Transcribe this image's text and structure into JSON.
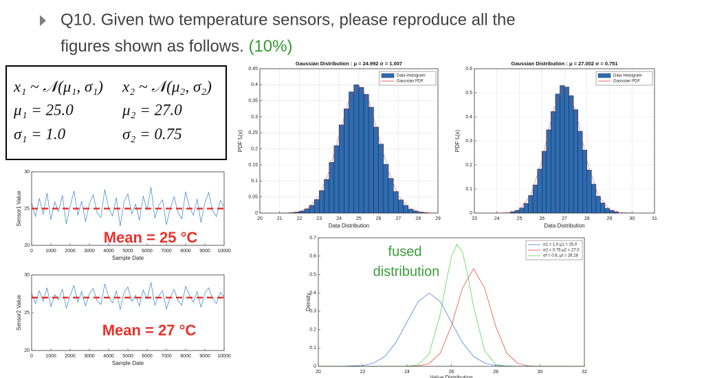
{
  "slide": {
    "title_line1": "Q10. Given two temperature sensors, please reproduce all the",
    "title_line2": "figures shown as follows.",
    "title_weight": "(10%)",
    "formulas": [
      [
        "x₁ ~ 𝒩(μ₁, σ₁)",
        "x₂ ~ 𝒩(μ₂, σ₂)"
      ],
      [
        "μ₁ = 25.0",
        "μ₂ = 27.0"
      ],
      [
        "σ₁ = 1.0",
        "σ₂ = 0.75"
      ]
    ]
  },
  "chart_data": [
    {
      "type": "line",
      "xlabel": "Sample Date",
      "ylabel": "Sensor1 Value",
      "x": [
        0,
        200,
        400,
        600,
        800,
        1000,
        1200,
        1400,
        1600,
        1800,
        2000,
        2200,
        2400,
        2600,
        2800,
        3000,
        3200,
        3400,
        3600,
        3800,
        4000,
        4200,
        4400,
        4600,
        4800,
        5000,
        5200,
        5400,
        5600,
        5800,
        6000,
        6200,
        6400,
        6600,
        6800,
        7000,
        7200,
        7400,
        7600,
        7800,
        8000,
        8200,
        8400,
        8600,
        8800,
        9000,
        9200,
        9400,
        9600,
        9800,
        10000
      ],
      "series": [
        {
          "color": "#2f7dc4",
          "values": [
            25.8,
            23.9,
            26.4,
            24.2,
            27.1,
            23.5,
            25.9,
            24.6,
            26.8,
            22.9,
            25.3,
            27.4,
            24.1,
            26.0,
            23.2,
            25.7,
            26.9,
            24.4,
            23.8,
            27.6,
            25.1,
            24.0,
            26.5,
            22.6,
            25.9,
            27.0,
            24.3,
            25.6,
            23.4,
            26.7,
            24.8,
            27.9,
            23.7,
            25.4,
            26.2,
            22.8,
            25.0,
            26.6,
            24.5,
            23.6,
            27.3,
            25.2,
            24.1,
            26.3,
            23.1,
            25.8,
            27.2,
            24.7,
            23.9,
            26.1,
            25.3
          ]
        }
      ],
      "mean": 25,
      "mean_color": "#e8312a",
      "annotation": "Mean = 25 °C",
      "xlim": [
        0,
        10000
      ],
      "xticks": [
        0,
        1000,
        2000,
        3000,
        4000,
        5000,
        6000,
        7000,
        8000,
        9000,
        10000
      ],
      "ylim": [
        20,
        30
      ],
      "yticks": [
        20,
        25,
        30
      ]
    },
    {
      "type": "line",
      "xlabel": "Sample Date",
      "ylabel": "Sensor2 Value",
      "x": [
        0,
        200,
        400,
        600,
        800,
        1000,
        1200,
        1400,
        1600,
        1800,
        2000,
        2200,
        2400,
        2600,
        2800,
        3000,
        3200,
        3400,
        3600,
        3800,
        4000,
        4200,
        4400,
        4600,
        4800,
        5000,
        5200,
        5400,
        5600,
        5800,
        6000,
        6200,
        6400,
        6600,
        6800,
        7000,
        7200,
        7400,
        7600,
        7800,
        8000,
        8200,
        8400,
        8600,
        8800,
        9000,
        9200,
        9400,
        9600,
        9800,
        10000
      ],
      "series": [
        {
          "color": "#2f7dc4",
          "values": [
            27.6,
            26.2,
            27.9,
            26.5,
            28.3,
            25.8,
            27.4,
            26.7,
            28.1,
            25.6,
            27.2,
            28.6,
            26.4,
            27.8,
            25.9,
            27.5,
            28.2,
            26.6,
            26.1,
            28.8,
            27.1,
            26.3,
            27.9,
            25.4,
            27.7,
            28.4,
            26.5,
            27.3,
            25.9,
            28.0,
            26.8,
            29.0,
            26.0,
            27.2,
            27.9,
            25.5,
            27.0,
            28.1,
            26.6,
            26.0,
            28.5,
            27.3,
            26.4,
            27.8,
            25.7,
            27.6,
            28.3,
            26.9,
            26.2,
            27.7,
            27.1
          ]
        }
      ],
      "mean": 27,
      "mean_color": "#e8312a",
      "annotation": "Mean = 27 °C",
      "xlim": [
        0,
        10000
      ],
      "xticks": [
        0,
        1000,
        2000,
        3000,
        4000,
        5000,
        6000,
        7000,
        8000,
        9000,
        10000
      ],
      "ylim": [
        20,
        30
      ],
      "yticks": [
        20,
        25,
        30
      ]
    },
    {
      "type": "histogram",
      "title": "Gaussian Distribution : μ = 24.992   σ = 1.007",
      "xlabel": "Data Distribution",
      "ylabel": "PDF fₓ(x)",
      "grid": true,
      "legend": "upper right",
      "series": [
        {
          "name": "Data Histogram",
          "color": "#2e6bb0",
          "bins": [
            21.5,
            21.75,
            22,
            22.25,
            22.5,
            22.75,
            23,
            23.25,
            23.5,
            23.75,
            24,
            24.25,
            24.5,
            24.75,
            25,
            25.25,
            25.5,
            25.75,
            26,
            26.25,
            26.5,
            26.75,
            27,
            27.25,
            27.5,
            27.75,
            28,
            28.25,
            28.5
          ],
          "values": [
            0.0013,
            0.003,
            0.0064,
            0.013,
            0.024,
            0.042,
            0.07,
            0.105,
            0.158,
            0.21,
            0.275,
            0.325,
            0.378,
            0.4,
            0.392,
            0.37,
            0.33,
            0.268,
            0.215,
            0.152,
            0.108,
            0.067,
            0.041,
            0.024,
            0.012,
            0.0065,
            0.003,
            0.0013
          ]
        },
        {
          "name": "Gaussian PDF",
          "color": "#e8312a",
          "x": [
            21,
            21.5,
            22,
            22.5,
            23,
            23.5,
            24,
            24.5,
            25,
            25.5,
            26,
            26.5,
            27,
            27.5,
            28,
            28.5,
            29
          ],
          "values": [
            0.0001,
            0.0009,
            0.0044,
            0.0175,
            0.054,
            0.1295,
            0.242,
            0.352,
            0.399,
            0.352,
            0.242,
            0.1295,
            0.054,
            0.0175,
            0.0044,
            0.0009,
            0.0001
          ]
        }
      ],
      "xlim": [
        20,
        29
      ],
      "xticks": [
        20,
        21,
        22,
        23,
        24,
        25,
        26,
        27,
        28,
        29
      ],
      "ylim": [
        0,
        0.45
      ],
      "yticks": [
        0,
        0.05,
        0.1,
        0.15,
        0.2,
        0.25,
        0.3,
        0.35,
        0.4,
        0.45
      ]
    },
    {
      "type": "histogram",
      "title": "Gaussian Distribution : μ = 27.002   σ = 0.751",
      "xlabel": "Data Distribution",
      "ylabel": "PDF fₓ(x)",
      "grid": true,
      "legend": "upper right",
      "series": [
        {
          "name": "Data Histogram",
          "color": "#2e6bb0",
          "bins": [
            24.6,
            24.8,
            25,
            25.2,
            25.4,
            25.6,
            25.8,
            26,
            26.2,
            26.4,
            26.6,
            26.8,
            27,
            27.2,
            27.4,
            27.6,
            27.8,
            28,
            28.2,
            28.4,
            28.6,
            28.8,
            29,
            29.2,
            29.4
          ],
          "values": [
            0.0048,
            0.011,
            0.021,
            0.04,
            0.073,
            0.117,
            0.183,
            0.257,
            0.346,
            0.422,
            0.495,
            0.53,
            0.524,
            0.488,
            0.43,
            0.34,
            0.262,
            0.179,
            0.12,
            0.07,
            0.042,
            0.02,
            0.011,
            0.005
          ]
        },
        {
          "name": "Gaussian PDF",
          "color": "#e8312a",
          "x": [
            24,
            24.5,
            25,
            25.5,
            26,
            26.5,
            27,
            27.5,
            28,
            28.5,
            29,
            29.5,
            30
          ],
          "values": [
            0.0002,
            0.0021,
            0.0152,
            0.072,
            0.219,
            0.426,
            0.532,
            0.426,
            0.219,
            0.072,
            0.0152,
            0.0021,
            0.0002
          ]
        }
      ],
      "xlim": [
        23,
        31
      ],
      "xticks": [
        23,
        24,
        25,
        26,
        27,
        28,
        29,
        30,
        31
      ],
      "ylim": [
        0,
        0.6
      ],
      "yticks": [
        0,
        0.1,
        0.2,
        0.3,
        0.4,
        0.5,
        0.6
      ]
    },
    {
      "type": "line",
      "xlabel": "Value Distribution",
      "ylabel": "Density",
      "legend": "upper right",
      "annotation": [
        "fused",
        "distribution"
      ],
      "annotation_color": "#3a9a3a",
      "series": [
        {
          "name": "σ1 = 1.0  μ1 = 25.0",
          "color": "#3b6fd6",
          "x": [
            20,
            21,
            22,
            22.5,
            23,
            23.5,
            24,
            24.5,
            25,
            25.5,
            26,
            26.5,
            27,
            27.5,
            28,
            29,
            32
          ],
          "values": [
            0,
            0.0001,
            0.0044,
            0.0175,
            0.054,
            0.1295,
            0.242,
            0.352,
            0.399,
            0.352,
            0.242,
            0.1295,
            0.054,
            0.0175,
            0.0044,
            0.0001,
            0
          ]
        },
        {
          "name": "σ2 = 0.75  μ2 = 27.0",
          "color": "#e03a2a",
          "x": [
            20,
            24,
            24.5,
            25,
            25.5,
            26,
            26.5,
            27,
            27.5,
            28,
            28.5,
            29,
            29.5,
            30,
            32
          ],
          "values": [
            0,
            0.0002,
            0.0021,
            0.0152,
            0.072,
            0.219,
            0.426,
            0.532,
            0.426,
            0.219,
            0.072,
            0.0152,
            0.0021,
            0.0002,
            0
          ]
        },
        {
          "name": "σf = 0.6, μf = 26.28",
          "color": "#3fcf3f",
          "x": [
            20,
            24,
            24.5,
            25,
            25.5,
            25.75,
            26,
            26.25,
            26.5,
            26.75,
            27,
            27.5,
            28,
            28.5,
            29,
            32
          ],
          "values": [
            0,
            0.0005,
            0.008,
            0.0676,
            0.284,
            0.448,
            0.595,
            0.664,
            0.623,
            0.491,
            0.326,
            0.085,
            0.011,
            0.0007,
            0,
            0
          ]
        }
      ],
      "xlim": [
        20,
        32
      ],
      "xticks": [
        20,
        22,
        24,
        26,
        28,
        30,
        32
      ],
      "ylim": [
        0,
        0.7
      ],
      "yticks": [
        0,
        0.1,
        0.2,
        0.3,
        0.4,
        0.5,
        0.6,
        0.7
      ]
    }
  ]
}
